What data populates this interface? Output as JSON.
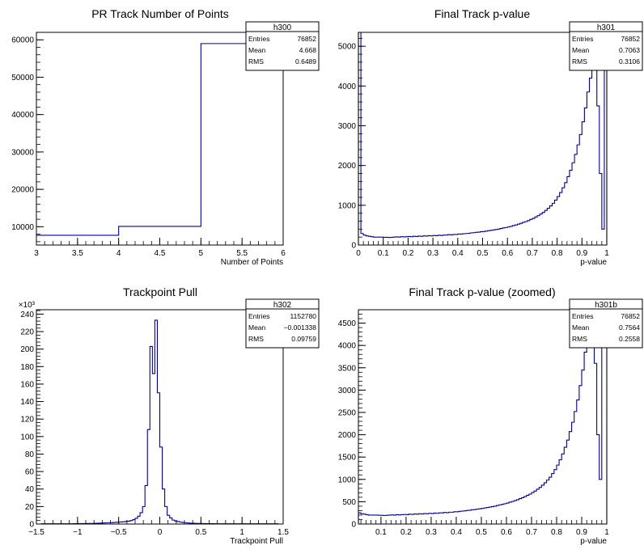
{
  "chart_data": [
    {
      "type": "histogram",
      "title": "PR Track Number of Points",
      "xlabel": "Number of Points",
      "ylabel": "",
      "xlim": [
        3,
        6
      ],
      "ylim": [
        5100,
        62000
      ],
      "xticks": [
        "3",
        "3.5",
        "4",
        "4.5",
        "5",
        "5.5",
        "6"
      ],
      "yticks": [
        "10000",
        "20000",
        "30000",
        "40000",
        "50000",
        "60000"
      ],
      "ytick_values": [
        10000,
        20000,
        30000,
        40000,
        50000,
        60000
      ],
      "xtick_values": [
        3,
        3.5,
        4,
        4.5,
        5,
        5.5,
        6
      ],
      "bins": [
        3,
        4,
        5,
        6
      ],
      "values": [
        7700,
        10100,
        59000
      ],
      "exponent": "",
      "stats": {
        "name": "h300",
        "rows": [
          [
            "Entries",
            "76852"
          ],
          [
            "Mean",
            "4.668"
          ],
          [
            "RMS",
            "0.6489"
          ]
        ]
      }
    },
    {
      "type": "histogram",
      "title": "Final Track p-value",
      "xlabel": "p-value",
      "ylabel": "",
      "xlim": [
        0,
        1
      ],
      "ylim": [
        0,
        5350
      ],
      "xticks": [
        "0",
        "0.1",
        "0.2",
        "0.3",
        "0.4",
        "0.5",
        "0.6",
        "0.7",
        "0.8",
        "0.9",
        "1"
      ],
      "xtick_values": [
        0,
        0.1,
        0.2,
        0.3,
        0.4,
        0.5,
        0.6,
        0.7,
        0.8,
        0.9,
        1
      ],
      "yticks": [
        "0",
        "1000",
        "2000",
        "3000",
        "4000",
        "5000"
      ],
      "ytick_values": [
        0,
        1000,
        2000,
        3000,
        4000,
        5000
      ],
      "bin_width": 0.01,
      "xstart": 0,
      "values": [
        5350,
        290,
        250,
        230,
        220,
        210,
        200,
        200,
        200,
        200,
        195,
        195,
        190,
        195,
        200,
        205,
        200,
        210,
        205,
        210,
        215,
        210,
        220,
        215,
        225,
        220,
        230,
        225,
        235,
        230,
        240,
        235,
        245,
        240,
        250,
        250,
        260,
        255,
        265,
        265,
        275,
        275,
        285,
        290,
        295,
        305,
        310,
        320,
        325,
        335,
        340,
        350,
        360,
        370,
        380,
        390,
        400,
        415,
        430,
        440,
        455,
        470,
        490,
        505,
        525,
        545,
        570,
        590,
        615,
        645,
        670,
        705,
        740,
        780,
        820,
        870,
        925,
        985,
        1050,
        1130,
        1220,
        1320,
        1440,
        1570,
        1720,
        1880,
        2070,
        2280,
        2520,
        2780,
        3100,
        3450,
        3850,
        4200,
        4650,
        4750,
        3500,
        1800,
        400,
        5100
      ],
      "exponent": "",
      "stats": {
        "name": "h301",
        "rows": [
          [
            "Entries",
            "76852"
          ],
          [
            "Mean",
            "0.7063"
          ],
          [
            "RMS",
            "0.3106"
          ]
        ]
      }
    },
    {
      "type": "histogram",
      "title": "Trackpoint Pull",
      "xlabel": "Trackpoint Pull",
      "ylabel": "",
      "xlim": [
        -1.5,
        1.5
      ],
      "ylim": [
        0,
        245
      ],
      "xticks": [
        "−1.5",
        "−1",
        "−0.5",
        "0",
        "0.5",
        "1",
        "1.5"
      ],
      "xtick_values": [
        -1.5,
        -1,
        -0.5,
        0,
        0.5,
        1,
        1.5
      ],
      "yticks": [
        "0",
        "20",
        "40",
        "60",
        "80",
        "100",
        "120",
        "140",
        "160",
        "180",
        "200",
        "220",
        "240"
      ],
      "ytick_values": [
        0,
        20,
        40,
        60,
        80,
        100,
        120,
        140,
        160,
        180,
        200,
        220,
        240
      ],
      "exponent": "×10³",
      "bin_width": 0.03,
      "xstart": -1.5,
      "values": [
        0,
        0,
        0.3,
        0.3,
        0.3,
        0.3,
        0.3,
        0.3,
        0.3,
        0.3,
        0.3,
        0.3,
        0.3,
        0.3,
        0.3,
        0.4,
        0.4,
        0.5,
        0.5,
        0.5,
        0.6,
        0.6,
        0.7,
        0.8,
        0.9,
        1.0,
        1.1,
        1.2,
        1.4,
        1.5,
        1.6,
        1.8,
        2.0,
        2.2,
        2.4,
        2.6,
        2.9,
        3.3,
        4.0,
        5.0,
        6.5,
        9.0,
        13,
        20,
        44,
        108,
        203,
        172,
        233,
        150,
        88,
        40,
        20,
        10,
        7,
        4.5,
        3.5,
        2.8,
        2.2,
        1.8,
        1.5,
        1.2,
        1.0,
        0.9,
        0.8,
        0.7,
        0.6,
        0.5,
        0.5,
        0.4,
        0.4,
        0.4,
        0.3,
        0.3,
        0.3,
        0.3,
        0.3,
        0.3,
        0.3,
        0.3,
        0.3,
        0.3,
        0.3,
        0.3,
        0.3,
        0.3,
        0.3,
        0.3,
        0.3,
        0.3,
        0.3,
        0.3,
        0.3,
        0.3,
        0.3,
        0.3,
        0.3,
        0.3,
        0,
        0
      ],
      "stats": {
        "name": "h302",
        "rows": [
          [
            "Entries",
            "1152780"
          ],
          [
            "Mean",
            "−0.001338"
          ],
          [
            "RMS",
            "0.09759"
          ]
        ]
      }
    },
    {
      "type": "histogram",
      "title": "Final Track p-value (zoomed)",
      "xlabel": "p-value",
      "ylabel": "",
      "xlim": [
        0.01,
        1
      ],
      "ylim": [
        0,
        4800
      ],
      "xticks": [
        "0.1",
        "0.2",
        "0.3",
        "0.4",
        "0.5",
        "0.6",
        "0.7",
        "0.8",
        "0.9",
        "1"
      ],
      "xtick_values": [
        0.1,
        0.2,
        0.3,
        0.4,
        0.5,
        0.6,
        0.7,
        0.8,
        0.9,
        1
      ],
      "yticks": [
        "0",
        "500",
        "1000",
        "1500",
        "2000",
        "2500",
        "3000",
        "3500",
        "4000",
        "4500"
      ],
      "ytick_values": [
        0,
        500,
        1000,
        1500,
        2000,
        2500,
        3000,
        3500,
        4000,
        4500
      ],
      "exponent": "",
      "bin_width": 0.01,
      "xstart": 0.01,
      "values": [
        250,
        230,
        220,
        210,
        200,
        200,
        200,
        200,
        195,
        195,
        190,
        195,
        200,
        205,
        200,
        210,
        205,
        210,
        215,
        210,
        220,
        215,
        225,
        220,
        230,
        225,
        235,
        230,
        240,
        235,
        245,
        240,
        250,
        250,
        260,
        255,
        265,
        265,
        275,
        275,
        285,
        290,
        295,
        305,
        310,
        320,
        325,
        335,
        340,
        350,
        360,
        370,
        380,
        390,
        400,
        415,
        430,
        440,
        455,
        470,
        490,
        505,
        525,
        545,
        570,
        590,
        615,
        645,
        670,
        705,
        740,
        780,
        820,
        870,
        925,
        985,
        1050,
        1130,
        1220,
        1320,
        1440,
        1570,
        1720,
        1880,
        2070,
        2280,
        2520,
        2780,
        3100,
        3450,
        3850,
        4200,
        4650,
        4750,
        3600,
        2000,
        1000,
        4700,
        4700
      ],
      "stats": {
        "name": "h301b",
        "rows": [
          [
            "Entries",
            "76852"
          ],
          [
            "Mean",
            "0.7564"
          ],
          [
            "RMS",
            "0.2558"
          ]
        ]
      }
    }
  ]
}
